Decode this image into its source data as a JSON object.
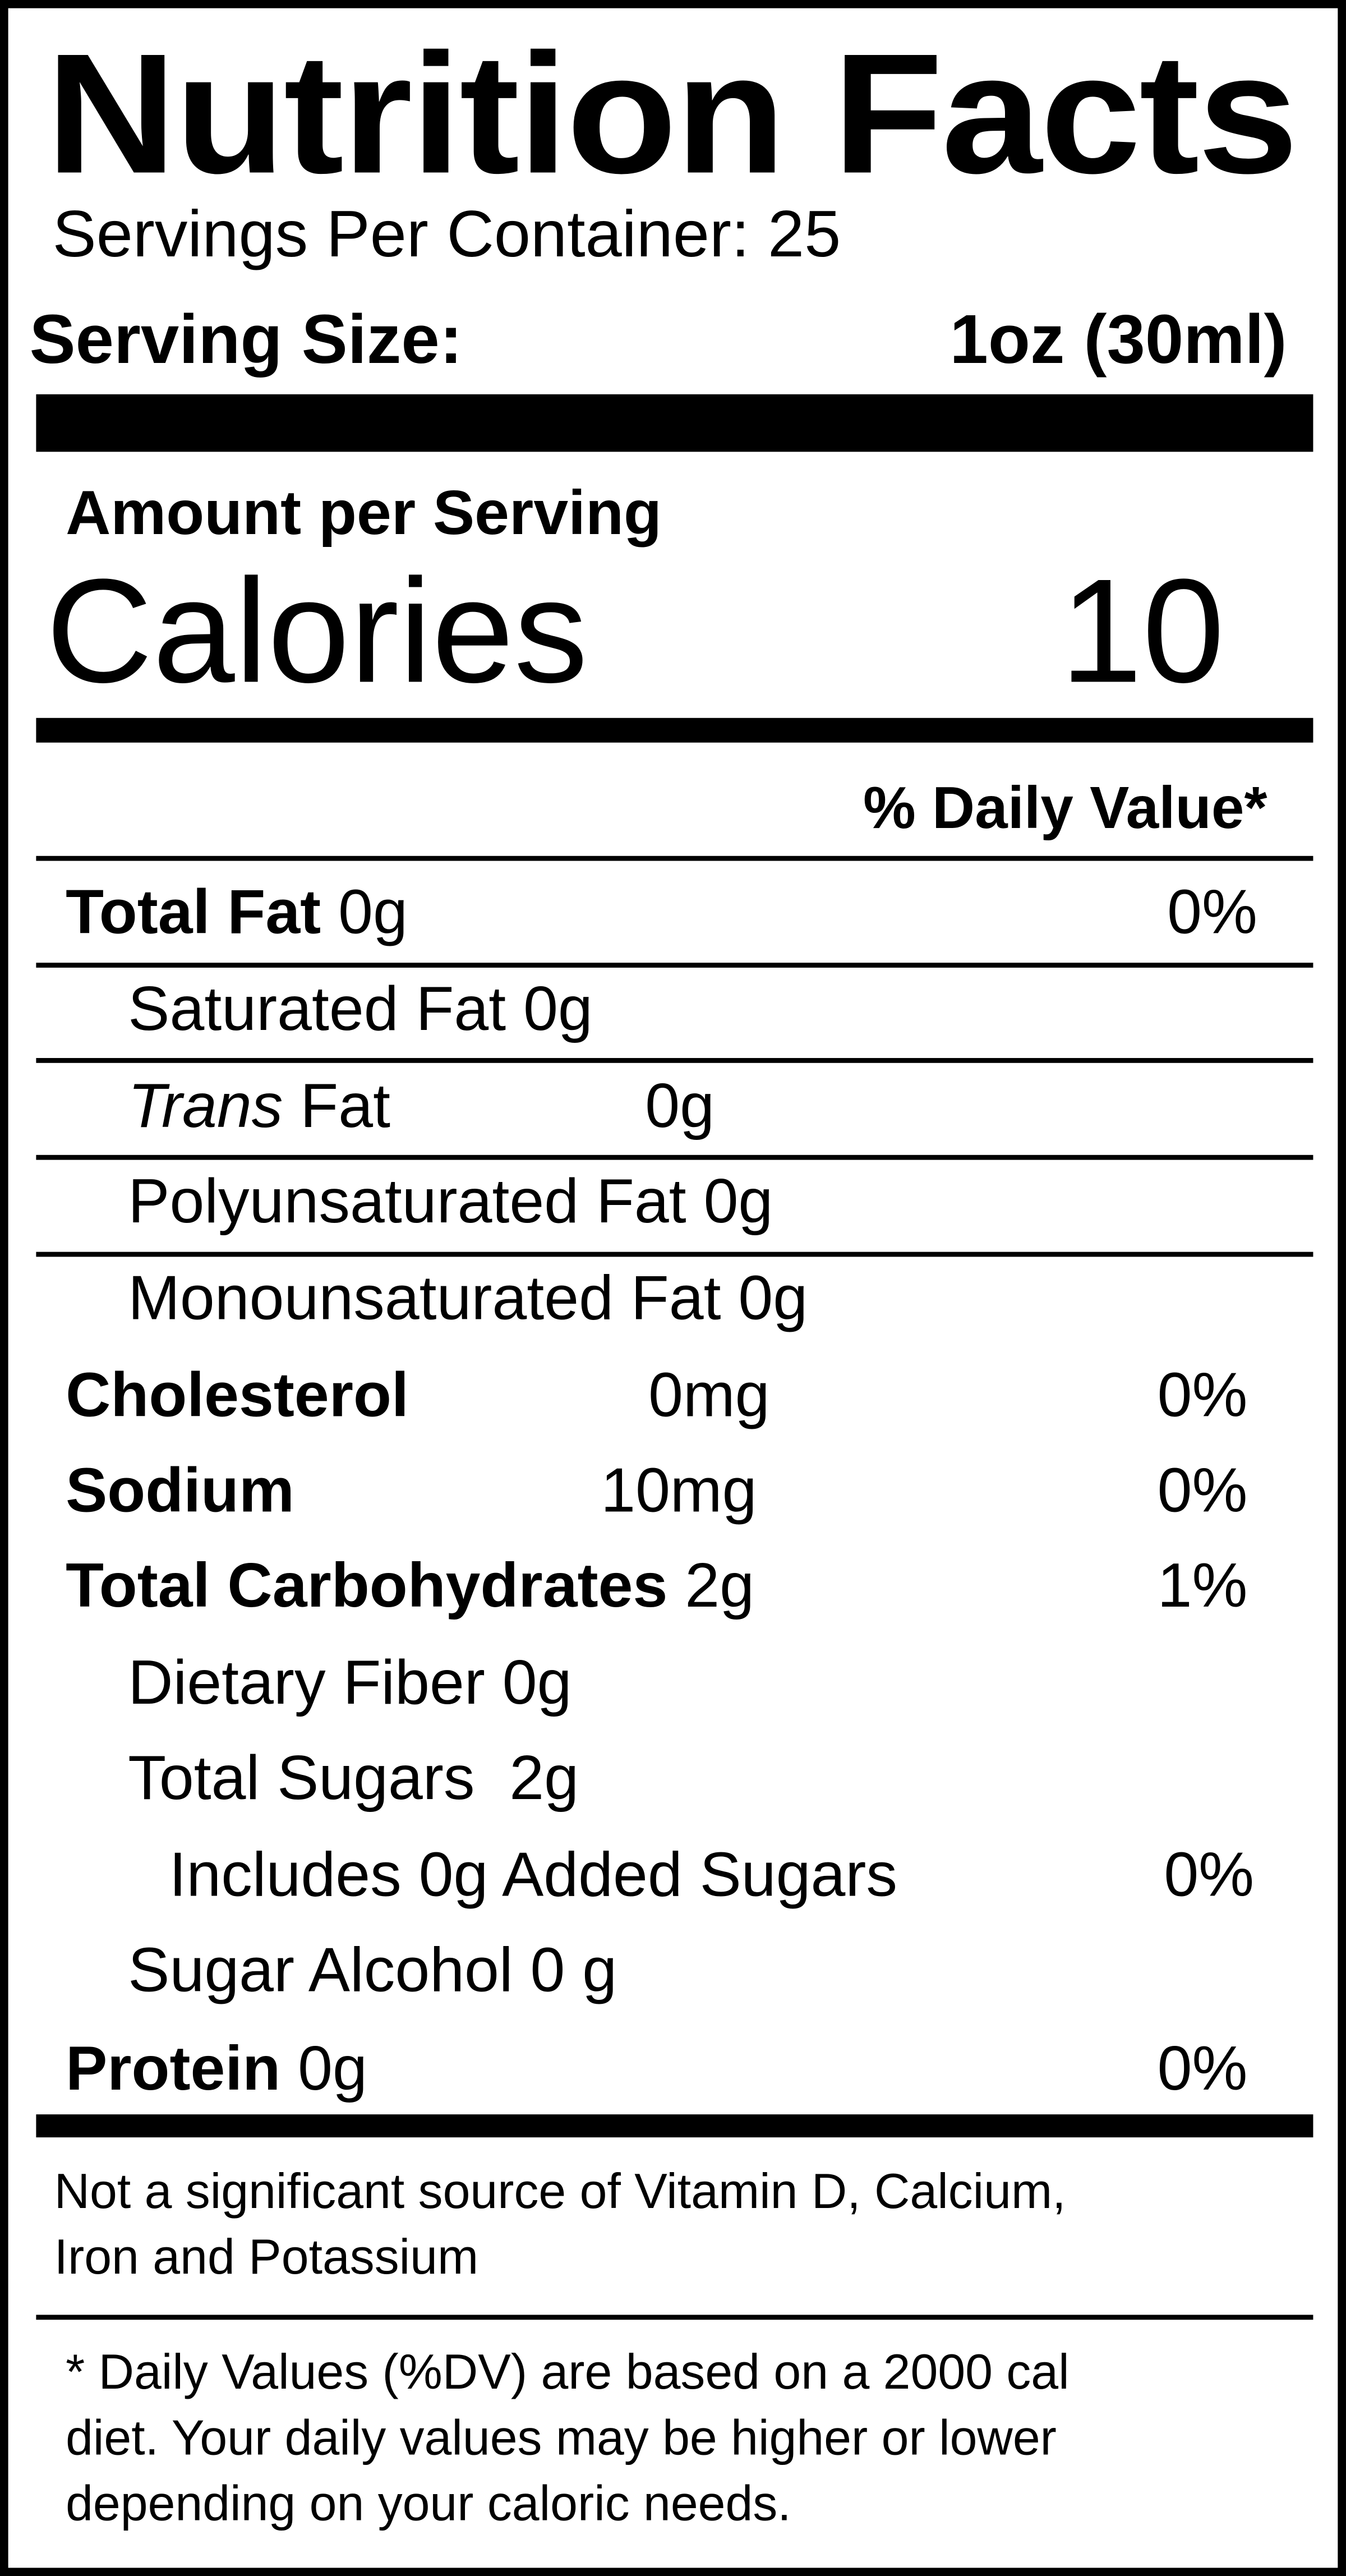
{
  "label": {
    "title": "Nutrition Facts",
    "servings_per_container": "Servings Per Container: 25",
    "serving_size_label": "Serving Size:",
    "serving_size_value": "1oz (30ml)",
    "amount_per_serving": "Amount per Serving",
    "calories_label": "Calories",
    "calories_value": "10",
    "daily_value_header": "% Daily Value*",
    "rows": [
      {
        "name": "Total Fat",
        "amount": "0g",
        "dv": "0%"
      },
      {
        "name": "Saturated Fat 0g"
      },
      {
        "name": "Trans",
        "suffix": "Fat",
        "amount": "0g"
      },
      {
        "name": "Polyunsaturated Fat 0g"
      },
      {
        "name": "Monounsaturated Fat 0g"
      },
      {
        "name": "Cholesterol",
        "amount": "0mg",
        "dv": "0%"
      },
      {
        "name": "Sodium",
        "amount": "10mg",
        "dv": "0%"
      },
      {
        "name": "Total Carbohydrates",
        "amount": "2g",
        "dv": "1%"
      },
      {
        "name": "Dietary Fiber 0g"
      },
      {
        "name": "Total Sugars  2g"
      },
      {
        "name": "Includes 0g Added Sugars",
        "dv": "0%"
      },
      {
        "name": "Sugar Alcohol 0 g"
      },
      {
        "name": "Protein",
        "amount": "0g",
        "dv": "0%"
      }
    ],
    "vitamin_note": [
      "Not a significant source of Vitamin D, Calcium,",
      "Iron and Potassium"
    ],
    "footnote": [
      "* Daily Values (%DV) are based on a 2000 cal",
      "diet. Your daily values may be higher or lower",
      "depending on your caloric needs."
    ]
  }
}
